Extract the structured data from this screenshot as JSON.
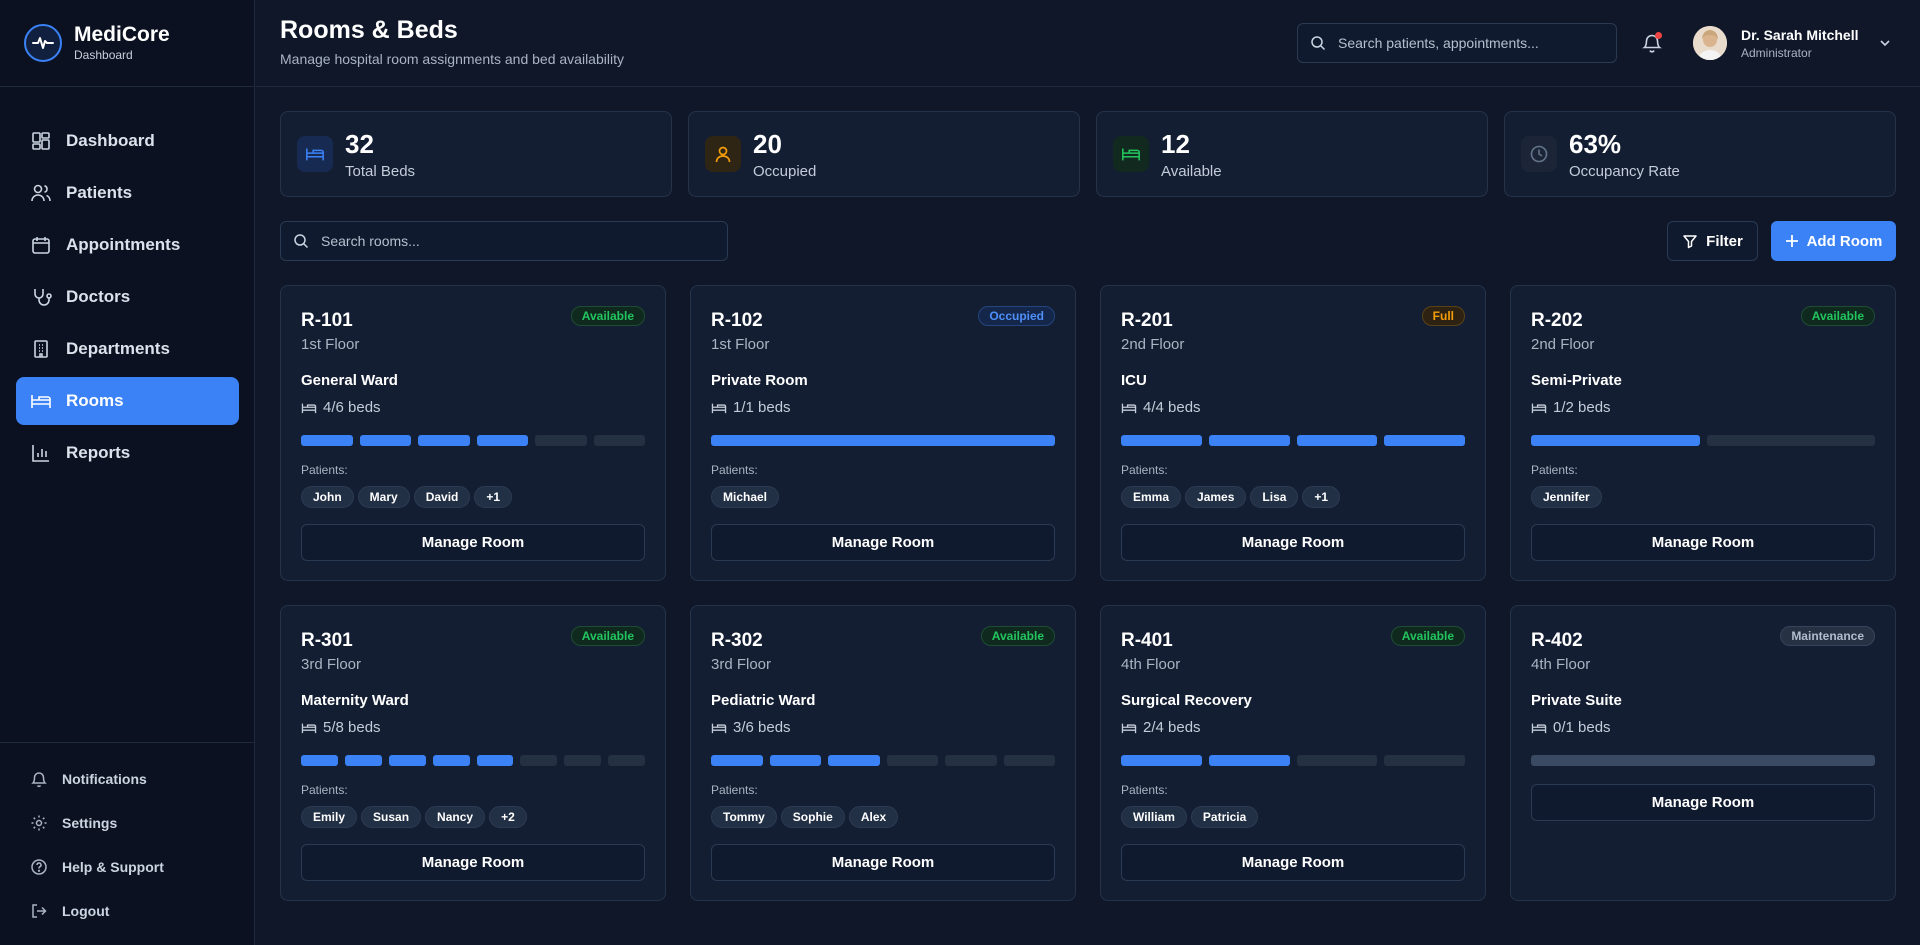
{
  "brand": {
    "name": "MediCore",
    "subtitle": "Dashboard"
  },
  "nav": [
    {
      "label": "Dashboard",
      "icon": "dashboard-icon"
    },
    {
      "label": "Patients",
      "icon": "users-icon"
    },
    {
      "label": "Appointments",
      "icon": "calendar-icon"
    },
    {
      "label": "Doctors",
      "icon": "stethoscope-icon"
    },
    {
      "label": "Departments",
      "icon": "building-icon"
    },
    {
      "label": "Rooms",
      "icon": "bed-icon",
      "active": true
    },
    {
      "label": "Reports",
      "icon": "bar-chart-icon"
    }
  ],
  "sidebar_bottom": [
    {
      "label": "Notifications",
      "icon": "bell-icon"
    },
    {
      "label": "Settings",
      "icon": "gear-icon"
    },
    {
      "label": "Help & Support",
      "icon": "help-circle-icon"
    },
    {
      "label": "Logout",
      "icon": "logout-icon"
    }
  ],
  "header": {
    "title": "Rooms & Beds",
    "subtitle": "Manage hospital room assignments and bed availability",
    "search_placeholder": "Search patients, appointments...",
    "user_name": "Dr. Sarah Mitchell",
    "user_role": "Administrator"
  },
  "stats": [
    {
      "value": "32",
      "label": "Total Beds",
      "color": "#3b82f6",
      "icon": "bed-icon"
    },
    {
      "value": "20",
      "label": "Occupied",
      "color": "#f59e0b",
      "icon": "user-icon"
    },
    {
      "value": "12",
      "label": "Available",
      "color": "#22c55e",
      "icon": "bed-icon"
    },
    {
      "value": "63%",
      "label": "Occupancy Rate",
      "color": "#64748b",
      "icon": "clock-icon"
    }
  ],
  "toolbar": {
    "search_placeholder": "Search rooms...",
    "filter_label": "Filter",
    "add_label": "Add Room"
  },
  "rooms_ui": {
    "patients_label": "Patients:",
    "manage_label": "Manage Room"
  },
  "rooms": [
    {
      "id": "R-101",
      "floor": "1st Floor",
      "status": "Available",
      "status_key": "available",
      "type": "General Ward",
      "beds_text": "4/6 beds",
      "occupied": 4,
      "capacity": 6,
      "patients": [
        "John",
        "Mary",
        "David",
        "+1"
      ]
    },
    {
      "id": "R-102",
      "floor": "1st Floor",
      "status": "Occupied",
      "status_key": "occupied",
      "type": "Private Room",
      "beds_text": "1/1 beds",
      "occupied": 1,
      "capacity": 1,
      "patients": [
        "Michael"
      ]
    },
    {
      "id": "R-201",
      "floor": "2nd Floor",
      "status": "Full",
      "status_key": "full",
      "type": "ICU",
      "beds_text": "4/4 beds",
      "occupied": 4,
      "capacity": 4,
      "patients": [
        "Emma",
        "James",
        "Lisa",
        "+1"
      ]
    },
    {
      "id": "R-202",
      "floor": "2nd Floor",
      "status": "Available",
      "status_key": "available",
      "type": "Semi-Private",
      "beds_text": "1/2 beds",
      "occupied": 1,
      "capacity": 2,
      "patients": [
        "Jennifer"
      ]
    },
    {
      "id": "R-301",
      "floor": "3rd Floor",
      "status": "Available",
      "status_key": "available",
      "type": "Maternity Ward",
      "beds_text": "5/8 beds",
      "occupied": 5,
      "capacity": 8,
      "patients": [
        "Emily",
        "Susan",
        "Nancy",
        "+2"
      ]
    },
    {
      "id": "R-302",
      "floor": "3rd Floor",
      "status": "Available",
      "status_key": "available",
      "type": "Pediatric Ward",
      "beds_text": "3/6 beds",
      "occupied": 3,
      "capacity": 6,
      "patients": [
        "Tommy",
        "Sophie",
        "Alex"
      ]
    },
    {
      "id": "R-401",
      "floor": "4th Floor",
      "status": "Available",
      "status_key": "available",
      "type": "Surgical Recovery",
      "beds_text": "2/4 beds",
      "occupied": 2,
      "capacity": 4,
      "patients": [
        "William",
        "Patricia"
      ]
    },
    {
      "id": "R-402",
      "floor": "4th Floor",
      "status": "Maintenance",
      "status_key": "maintenance",
      "type": "Private Suite",
      "beds_text": "0/1 beds",
      "occupied": 0,
      "capacity": 1,
      "patients": []
    }
  ]
}
